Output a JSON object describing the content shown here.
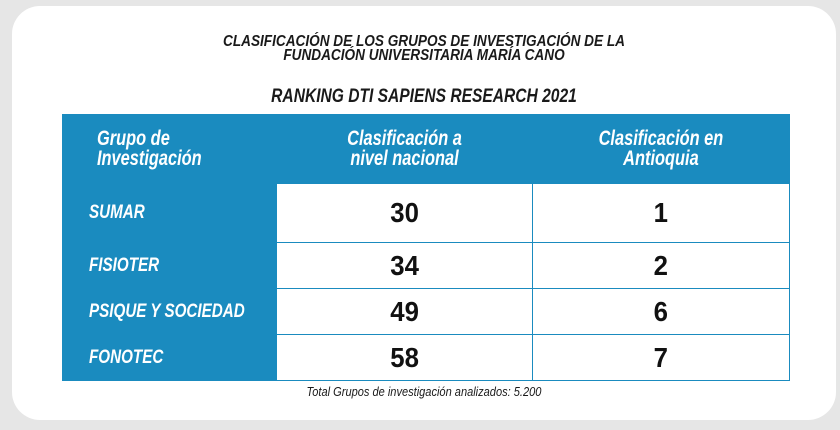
{
  "title": {
    "line1": "CLASIFICACIÓN DE LOS GRUPOS DE INVESTIGACIÓN DE LA",
    "line2": "FUNDACIÓN UNIVERSITARIA MARÍA CANO"
  },
  "subtitle": "RANKING DTI SAPIENS RESEARCH 2021",
  "table": {
    "headers": [
      "Grupo de\nInvestigación",
      "Clasificación a\nnivel nacional",
      "Clasificación en\nAntioquia"
    ],
    "rows": [
      {
        "group": "SUMAR",
        "national": "30",
        "antioquia": "1"
      },
      {
        "group": "FISIOTER",
        "national": "34",
        "antioquia": "2"
      },
      {
        "group": "PSIQUE Y SOCIEDAD",
        "national": "49",
        "antioquia": "6"
      },
      {
        "group": "FONOTEC",
        "national": "58",
        "antioquia": "7"
      }
    ]
  },
  "footnote": "Total Grupos de investigación analizados: 5.200",
  "colors": {
    "accent": "#1a8bbf",
    "background": "#e6e6e6",
    "card": "#ffffff",
    "text": "#1a1a1a"
  }
}
